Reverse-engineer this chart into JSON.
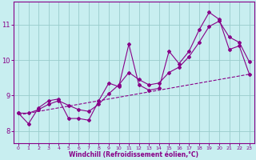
{
  "xlabel": "Windchill (Refroidissement éolien,°C)",
  "bg_color": "#c8eef0",
  "line_color": "#880088",
  "grid_color": "#99cccc",
  "spine_color": "#880088",
  "xlim": [
    -0.5,
    23.5
  ],
  "ylim": [
    7.65,
    11.65
  ],
  "yticks": [
    8,
    9,
    10,
    11
  ],
  "xticks": [
    0,
    1,
    2,
    3,
    4,
    5,
    6,
    7,
    8,
    9,
    10,
    11,
    12,
    13,
    14,
    15,
    16,
    17,
    18,
    19,
    20,
    21,
    22,
    23
  ],
  "main_x": [
    0,
    1,
    2,
    3,
    4,
    5,
    6,
    7,
    8,
    9,
    10,
    11,
    12,
    13,
    14,
    15,
    16,
    17,
    18,
    19,
    20,
    21,
    22,
    23
  ],
  "main_y": [
    8.5,
    8.2,
    8.65,
    8.85,
    8.9,
    8.35,
    8.35,
    8.3,
    8.85,
    9.35,
    9.25,
    10.45,
    9.3,
    9.15,
    9.2,
    10.25,
    9.9,
    10.25,
    10.85,
    11.35,
    11.15,
    10.3,
    10.4,
    9.6
  ],
  "smooth_x": [
    0,
    1,
    2,
    3,
    4,
    5,
    6,
    7,
    8,
    9,
    10,
    11,
    12,
    13,
    14,
    15,
    16,
    17,
    18,
    19,
    20,
    21,
    22,
    23
  ],
  "smooth_y": [
    8.5,
    8.5,
    8.6,
    8.75,
    8.85,
    8.72,
    8.6,
    8.55,
    8.75,
    9.05,
    9.3,
    9.65,
    9.45,
    9.3,
    9.35,
    9.65,
    9.8,
    10.1,
    10.5,
    10.95,
    11.1,
    10.65,
    10.5,
    9.95
  ],
  "trend_x": [
    0,
    23
  ],
  "trend_y": [
    8.45,
    9.6
  ]
}
